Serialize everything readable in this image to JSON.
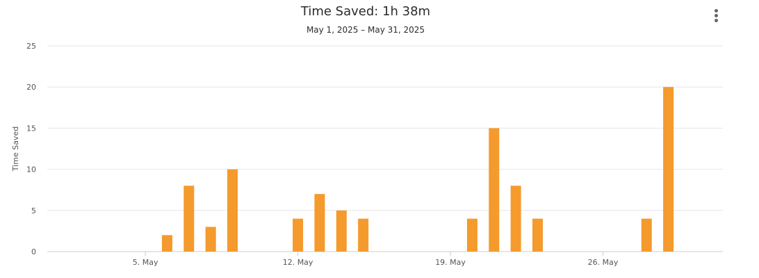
{
  "header": {
    "title": "Time Saved: 1h 38m",
    "subtitle": "May 1, 2025 – May 31, 2025",
    "menu_icon": "kebab-menu-icon"
  },
  "chart_data": {
    "type": "bar",
    "title": "Time Saved: 1h 38m",
    "subtitle": "May 1, 2025 – May 31, 2025",
    "xlabel": "",
    "ylabel": "Time Saved",
    "ylim": [
      0,
      25
    ],
    "yticks": [
      0,
      5,
      10,
      15,
      20,
      25
    ],
    "xlim": [
      "2025-05-01",
      "2025-05-31"
    ],
    "xticks": [
      {
        "date": "2025-05-05",
        "label": "5. May"
      },
      {
        "date": "2025-05-12",
        "label": "12. May"
      },
      {
        "date": "2025-05-19",
        "label": "19. May"
      },
      {
        "date": "2025-05-26",
        "label": "26. May"
      }
    ],
    "bar_color": "#f59a2c",
    "grid": true,
    "points": [
      {
        "date": "2025-05-06",
        "value": 2
      },
      {
        "date": "2025-05-07",
        "value": 8
      },
      {
        "date": "2025-05-08",
        "value": 3
      },
      {
        "date": "2025-05-09",
        "value": 10
      },
      {
        "date": "2025-05-12",
        "value": 4
      },
      {
        "date": "2025-05-13",
        "value": 7
      },
      {
        "date": "2025-05-14",
        "value": 5
      },
      {
        "date": "2025-05-15",
        "value": 4
      },
      {
        "date": "2025-05-20",
        "value": 4
      },
      {
        "date": "2025-05-21",
        "value": 15
      },
      {
        "date": "2025-05-22",
        "value": 8
      },
      {
        "date": "2025-05-23",
        "value": 4
      },
      {
        "date": "2025-05-28",
        "value": 4
      },
      {
        "date": "2025-05-29",
        "value": 20
      }
    ]
  }
}
